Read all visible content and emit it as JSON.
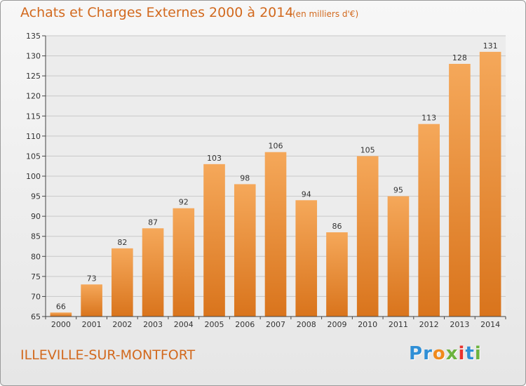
{
  "title": "Achats et Charges Externes 2000 à 2014",
  "subtitle": "(en milliers d'€)",
  "commune": "ILLEVILLE-SUR-MONTFORT",
  "logo_text": "Proxiti",
  "logo_colors": [
    "#2f8fd6",
    "#2f8fd6",
    "#f08a1c",
    "#6cb33e",
    "#e8332f",
    "#2f8fd6",
    "#6cb33e"
  ],
  "colors": {
    "bar_light": "#f5a85a",
    "bar_dark": "#d9741c",
    "text": "#d2691e",
    "grid": "#c8c8c8",
    "axis": "#444444"
  },
  "chart_data": {
    "type": "bar",
    "title": "Achats et Charges Externes 2000 à 2014",
    "categories": [
      "2000",
      "2001",
      "2002",
      "2003",
      "2004",
      "2005",
      "2006",
      "2007",
      "2008",
      "2009",
      "2010",
      "2011",
      "2012",
      "2013",
      "2014"
    ],
    "values": [
      66,
      73,
      82,
      87,
      92,
      103,
      98,
      106,
      94,
      86,
      105,
      95,
      113,
      128,
      131
    ],
    "ylim": [
      65,
      135
    ],
    "yticks": [
      65,
      70,
      75,
      80,
      85,
      90,
      95,
      100,
      105,
      110,
      115,
      120,
      125,
      130,
      135
    ],
    "grid": true,
    "data_labels": true
  }
}
